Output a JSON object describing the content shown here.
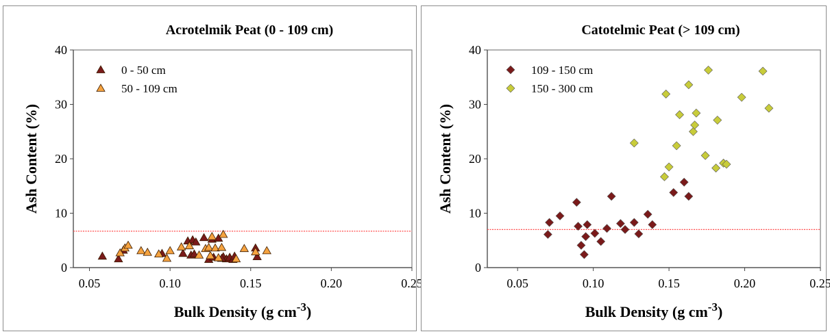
{
  "chart_data": [
    {
      "type": "scatter",
      "title": "Acrotelmik Peat (0 - 109 cm)",
      "xlabel": "Bulk Density (g cm",
      "xlabel_sup": "-3",
      "xlabel_suffix": ")",
      "ylabel": "Ash Content (%)",
      "xlim": [
        0.04,
        0.25
      ],
      "ylim": [
        0,
        40
      ],
      "xticks": [
        "0.05",
        "0.10",
        "0.15",
        "0.20",
        "0.25"
      ],
      "xtick_values": [
        0.05,
        0.1,
        0.15,
        0.2,
        0.25
      ],
      "yticks": [
        "0",
        "10",
        "20",
        "30",
        "40"
      ],
      "ytick_values": [
        0,
        10,
        20,
        30,
        40
      ],
      "grid": false,
      "legend_position": "top-left",
      "reference_line": {
        "y": 6.7,
        "color": "#ff4d4d"
      },
      "series": [
        {
          "name": "0 -  50 cm",
          "marker": "triangle",
          "color": "#7a1a1a",
          "points": [
            [
              0.058,
              2.1
            ],
            [
              0.068,
              1.6
            ],
            [
              0.071,
              3.2
            ],
            [
              0.095,
              2.6
            ],
            [
              0.108,
              2.6
            ],
            [
              0.111,
              4.9
            ],
            [
              0.113,
              2.3
            ],
            [
              0.114,
              5.1
            ],
            [
              0.115,
              2.5
            ],
            [
              0.116,
              4.7
            ],
            [
              0.121,
              5.5
            ],
            [
              0.124,
              1.5
            ],
            [
              0.126,
              5.2
            ],
            [
              0.13,
              5.4
            ],
            [
              0.133,
              2.0
            ],
            [
              0.135,
              1.6
            ],
            [
              0.137,
              1.9
            ],
            [
              0.139,
              1.5
            ],
            [
              0.14,
              2.1
            ],
            [
              0.153,
              3.6
            ],
            [
              0.154,
              2.0
            ],
            [
              0.132,
              1.7
            ],
            [
              0.127,
              1.9
            ]
          ]
        },
        {
          "name": "50 - 109 cm",
          "marker": "triangle",
          "color": "#f5a340",
          "points": [
            [
              0.069,
              2.7
            ],
            [
              0.072,
              3.6
            ],
            [
              0.074,
              4.1
            ],
            [
              0.082,
              3.1
            ],
            [
              0.086,
              2.8
            ],
            [
              0.093,
              2.5
            ],
            [
              0.098,
              1.7
            ],
            [
              0.1,
              3.1
            ],
            [
              0.107,
              3.8
            ],
            [
              0.112,
              4.0
            ],
            [
              0.118,
              2.3
            ],
            [
              0.122,
              3.5
            ],
            [
              0.124,
              3.7
            ],
            [
              0.126,
              5.7
            ],
            [
              0.128,
              3.6
            ],
            [
              0.13,
              1.8
            ],
            [
              0.132,
              3.7
            ],
            [
              0.133,
              6.1
            ],
            [
              0.141,
              1.6
            ],
            [
              0.146,
              3.5
            ],
            [
              0.153,
              2.9
            ],
            [
              0.16,
              3.1
            ],
            [
              0.125,
              2.2
            ]
          ]
        }
      ]
    },
    {
      "type": "scatter",
      "title": "Catotelmic Peat (> 109 cm)",
      "xlabel": "Bulk Density (g cm",
      "xlabel_sup": "-3",
      "xlabel_suffix": ")",
      "ylabel": "Ash Content (%)",
      "xlim": [
        0.03,
        0.25
      ],
      "ylim": [
        0,
        40
      ],
      "xticks": [
        "0.05",
        "0.10",
        "0.15",
        "0.20",
        "0.25"
      ],
      "xtick_values": [
        0.05,
        0.1,
        0.15,
        0.2,
        0.25
      ],
      "yticks": [
        "0",
        "10",
        "20",
        "30",
        "40"
      ],
      "ytick_values": [
        0,
        10,
        20,
        30,
        40
      ],
      "grid": false,
      "legend_position": "top-left",
      "reference_line": {
        "y": 7.0,
        "color": "#ff4d4d"
      },
      "series": [
        {
          "name": "109 - 150 cm",
          "marker": "diamond",
          "color": "#7a1a1a",
          "points": [
            [
              0.07,
              6.1
            ],
            [
              0.071,
              8.3
            ],
            [
              0.078,
              9.5
            ],
            [
              0.089,
              12.0
            ],
            [
              0.09,
              7.6
            ],
            [
              0.092,
              4.1
            ],
            [
              0.094,
              2.4
            ],
            [
              0.095,
              5.7
            ],
            [
              0.096,
              7.9
            ],
            [
              0.101,
              6.3
            ],
            [
              0.105,
              4.8
            ],
            [
              0.109,
              7.2
            ],
            [
              0.112,
              13.1
            ],
            [
              0.118,
              8.1
            ],
            [
              0.121,
              7.0
            ],
            [
              0.127,
              8.3
            ],
            [
              0.13,
              6.2
            ],
            [
              0.136,
              9.8
            ],
            [
              0.139,
              7.9
            ],
            [
              0.153,
              13.8
            ],
            [
              0.16,
              15.7
            ],
            [
              0.163,
              13.1
            ]
          ]
        },
        {
          "name": "150 - 300 cm",
          "marker": "diamond",
          "color": "#c8cc3a",
          "points": [
            [
              0.127,
              22.9
            ],
            [
              0.147,
              16.7
            ],
            [
              0.148,
              31.9
            ],
            [
              0.15,
              18.5
            ],
            [
              0.155,
              22.4
            ],
            [
              0.157,
              28.1
            ],
            [
              0.163,
              33.6
            ],
            [
              0.166,
              25.0
            ],
            [
              0.167,
              26.2
            ],
            [
              0.168,
              28.4
            ],
            [
              0.174,
              20.6
            ],
            [
              0.176,
              36.3
            ],
            [
              0.181,
              18.3
            ],
            [
              0.182,
              27.1
            ],
            [
              0.186,
              19.2
            ],
            [
              0.188,
              19.0
            ],
            [
              0.198,
              31.3
            ],
            [
              0.212,
              36.1
            ],
            [
              0.216,
              29.3
            ]
          ]
        }
      ]
    }
  ]
}
